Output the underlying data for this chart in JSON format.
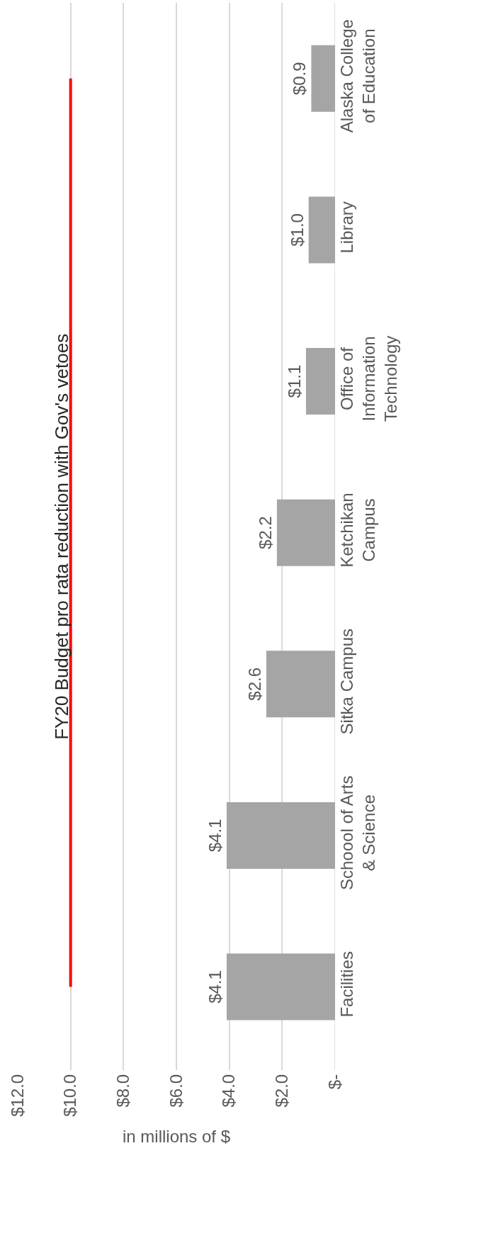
{
  "chart_data": {
    "type": "bar",
    "orientation": "horizontal",
    "title": "FY20 Budget pro rata reduction with Gov's vetoes",
    "xlabel": "in millions of $",
    "categories": [
      "Alaska College of Education",
      "Library",
      "Office of Information Technology",
      "Ketchikan Campus",
      "Sitka Campus",
      "Schoool of Arts & Science",
      "Facilities"
    ],
    "series": [
      {
        "color": "#a5a5a5",
        "values": [
          0.9,
          1.0,
          1.1,
          2.2,
          2.6,
          4.1,
          4.1
        ],
        "value_labels": [
          "$0.9",
          "$1.0",
          "$1.1",
          "$2.2",
          "$2.6",
          "$4.1",
          "$4.1"
        ]
      },
      {
        "type": "line",
        "color": "#ff0000",
        "values": [
          10,
          10,
          10,
          10,
          10,
          10,
          10
        ]
      }
    ],
    "xlim": [
      12,
      0
    ],
    "xticks": [
      {
        "value": 0,
        "label": "$-"
      },
      {
        "value": 2,
        "label": "$2.0"
      },
      {
        "value": 4,
        "label": "$4.0"
      },
      {
        "value": 6,
        "label": "$6.0"
      },
      {
        "value": 8,
        "label": "$8.0"
      },
      {
        "value": 10,
        "label": "$10.0"
      },
      {
        "value": 12,
        "label": "$12.0"
      }
    ],
    "grid": "x",
    "marker": "none",
    "line_style": "solid"
  }
}
